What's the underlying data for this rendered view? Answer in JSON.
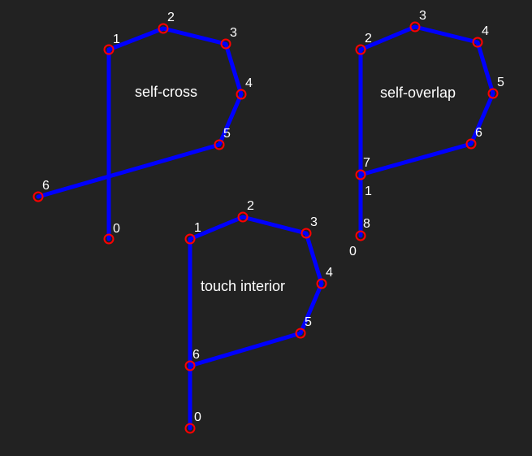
{
  "colors": {
    "background": "#222222",
    "line": "#0000ff",
    "vertex": "#ff0000",
    "text": "#ffffff"
  },
  "diagrams": [
    {
      "title": "self-cross",
      "vertices": [
        {
          "label": "0"
        },
        {
          "label": "1"
        },
        {
          "label": "2"
        },
        {
          "label": "3"
        },
        {
          "label": "4"
        },
        {
          "label": "5"
        },
        {
          "label": "6"
        }
      ]
    },
    {
      "title": "self-overlap",
      "vertices": [
        {
          "label": "0"
        },
        {
          "label": "1"
        },
        {
          "label": "2"
        },
        {
          "label": "3"
        },
        {
          "label": "4"
        },
        {
          "label": "5"
        },
        {
          "label": "6"
        },
        {
          "label": "7"
        },
        {
          "label": "8"
        }
      ]
    },
    {
      "title": "touch interior",
      "vertices": [
        {
          "label": "0"
        },
        {
          "label": "1"
        },
        {
          "label": "2"
        },
        {
          "label": "3"
        },
        {
          "label": "4"
        },
        {
          "label": "5"
        },
        {
          "label": "6"
        },
        {
          "label": "0"
        }
      ]
    }
  ]
}
